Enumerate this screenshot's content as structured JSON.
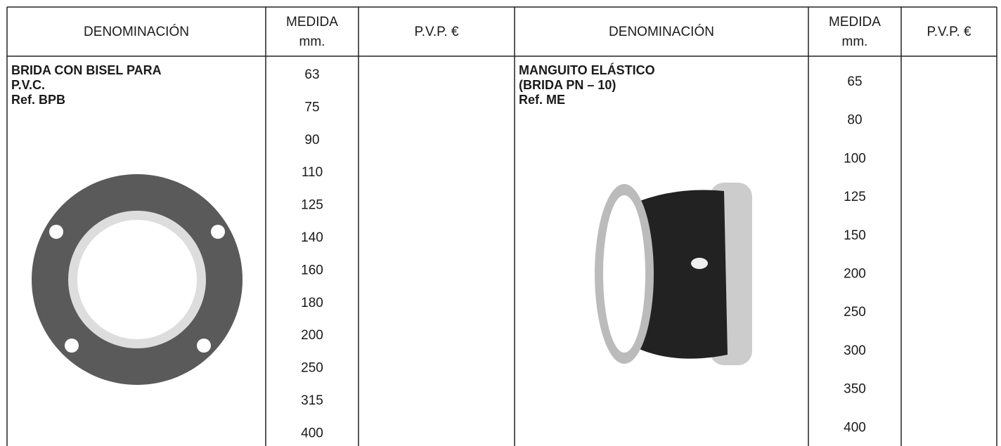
{
  "table": {
    "headers": [
      "DENOMINACIÓN",
      [
        "MEDIDA",
        "mm."
      ],
      "P.V.P. €",
      "DENOMINACIÓN",
      [
        "MEDIDA",
        "mm."
      ],
      "P.V.P. €"
    ],
    "products": [
      {
        "lines": [
          "BRIDA CON BISEL PARA",
          "P.V.C.",
          "Ref. BPB"
        ],
        "sizes": [
          "63",
          "75",
          "90",
          "110",
          "125",
          "140",
          "160",
          "180",
          "200",
          "250",
          "315",
          "400"
        ]
      },
      {
        "lines": [
          "MANGUITO ELÁSTICO",
          "(BRIDA PN – 10)",
          "Ref. ME"
        ],
        "sizes": [
          "65",
          "80",
          "100",
          "125",
          "150",
          "200",
          "250",
          "300",
          "350",
          "400"
        ]
      }
    ]
  }
}
